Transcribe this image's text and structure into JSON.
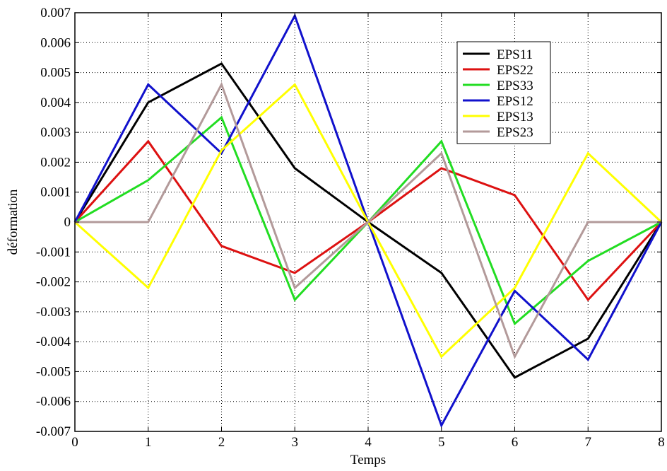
{
  "chart_data": {
    "type": "line",
    "title": "",
    "xlabel": "Temps",
    "ylabel": "déformation",
    "x": [
      0,
      1,
      2,
      3,
      4,
      5,
      6,
      7,
      8
    ],
    "xlim": [
      0,
      8
    ],
    "ylim": [
      -0.007,
      0.007
    ],
    "x_ticks": [
      "0",
      "1",
      "2",
      "3",
      "4",
      "5",
      "6",
      "7",
      "8"
    ],
    "y_ticks": [
      "0.007",
      "0.006",
      "0.005",
      "0.004",
      "0.003",
      "0.002",
      "0.001",
      "0",
      "-0.001",
      "-0.002",
      "-0.003",
      "-0.004",
      "-0.005",
      "-0.006",
      "-0.007"
    ],
    "grid": true,
    "legend_position": "top-right",
    "series": [
      {
        "name": "EPS11",
        "color": "#000000",
        "values": [
          0,
          0.004,
          0.0053,
          0.0018,
          0,
          -0.0017,
          -0.0052,
          -0.0039,
          0
        ]
      },
      {
        "name": "EPS22",
        "color": "#dd1111",
        "values": [
          0,
          0.0027,
          -0.0008,
          -0.0017,
          0,
          0.0018,
          0.0009,
          -0.0026,
          0
        ]
      },
      {
        "name": "EPS33",
        "color": "#22dd22",
        "values": [
          0,
          0.0014,
          0.0035,
          -0.0026,
          0,
          0.0027,
          -0.0034,
          -0.0013,
          0
        ]
      },
      {
        "name": "EPS12",
        "color": "#1111cc",
        "values": [
          0,
          0.0046,
          0.0023,
          0.0069,
          0,
          -0.0068,
          -0.0023,
          -0.0046,
          0
        ]
      },
      {
        "name": "EPS13",
        "color": "#ffff00",
        "values": [
          0,
          -0.0022,
          0.0024,
          0.0046,
          0,
          -0.0045,
          -0.0022,
          0.0023,
          0
        ]
      },
      {
        "name": "EPS23",
        "color": "#b39a9a",
        "values": [
          0,
          0,
          0.0046,
          -0.0022,
          0,
          0.0023,
          -0.0045,
          0,
          0
        ]
      }
    ]
  }
}
